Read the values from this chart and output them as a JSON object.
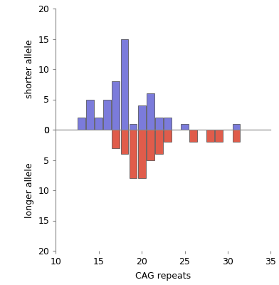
{
  "shorter_allele": {
    "x": [
      13,
      14,
      15,
      16,
      17,
      18,
      19,
      20,
      21,
      22,
      23,
      25,
      31
    ],
    "counts": [
      2,
      5,
      2,
      5,
      8,
      15,
      1,
      4,
      6,
      2,
      2,
      1,
      1
    ]
  },
  "longer_allele": {
    "x": [
      17,
      18,
      19,
      20,
      21,
      22,
      23,
      26,
      28,
      29,
      31
    ],
    "counts": [
      3,
      4,
      8,
      8,
      5,
      4,
      2,
      2,
      2,
      2,
      2
    ]
  },
  "shorter_color": "#7b7bdb",
  "longer_color": "#e05c4b",
  "bar_edge_color": "#444444",
  "xlim": [
    10,
    35
  ],
  "shorter_ylim": [
    0,
    20
  ],
  "longer_ylim": [
    0,
    20
  ],
  "xlabel": "CAG repeats",
  "shorter_ylabel": "shorter allele",
  "longer_ylabel": "longer allele",
  "shorter_yticks": [
    0,
    5,
    10,
    15,
    20
  ],
  "longer_yticks": [
    0,
    5,
    10,
    15,
    20
  ],
  "xticks": [
    10,
    15,
    20,
    25,
    30,
    35
  ],
  "bar_width": 0.9,
  "figsize": [
    3.92,
    4.0
  ],
  "dpi": 100
}
